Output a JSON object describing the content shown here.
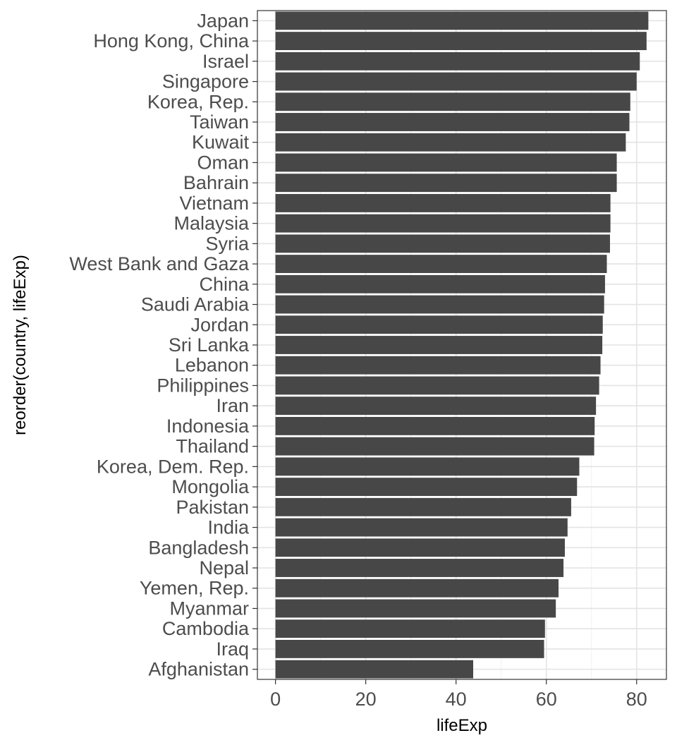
{
  "chart_data": {
    "type": "bar",
    "orientation": "horizontal",
    "xlabel": "lifeExp",
    "ylabel": "reorder(country, lifeExp)",
    "xlim": [
      -4,
      86.6
    ],
    "x_ticks": [
      0,
      20,
      40,
      60,
      80
    ],
    "grid": true,
    "bar_color": "#474747",
    "categories": [
      "Japan",
      "Hong Kong, China",
      "Israel",
      "Singapore",
      "Korea, Rep.",
      "Taiwan",
      "Kuwait",
      "Oman",
      "Bahrain",
      "Vietnam",
      "Malaysia",
      "Syria",
      "West Bank and Gaza",
      "China",
      "Saudi Arabia",
      "Jordan",
      "Sri Lanka",
      "Lebanon",
      "Philippines",
      "Iran",
      "Indonesia",
      "Thailand",
      "Korea, Dem. Rep.",
      "Mongolia",
      "Pakistan",
      "India",
      "Bangladesh",
      "Nepal",
      "Yemen, Rep.",
      "Myanmar",
      "Cambodia",
      "Iraq",
      "Afghanistan"
    ],
    "values": [
      82.6,
      82.2,
      80.7,
      80.0,
      78.6,
      78.4,
      77.6,
      75.6,
      75.6,
      74.2,
      74.2,
      74.1,
      73.4,
      73.0,
      72.8,
      72.5,
      72.4,
      72.0,
      71.7,
      71.0,
      70.7,
      70.6,
      67.3,
      66.8,
      65.5,
      64.7,
      64.1,
      63.8,
      62.7,
      62.1,
      59.7,
      59.5,
      43.8
    ]
  }
}
